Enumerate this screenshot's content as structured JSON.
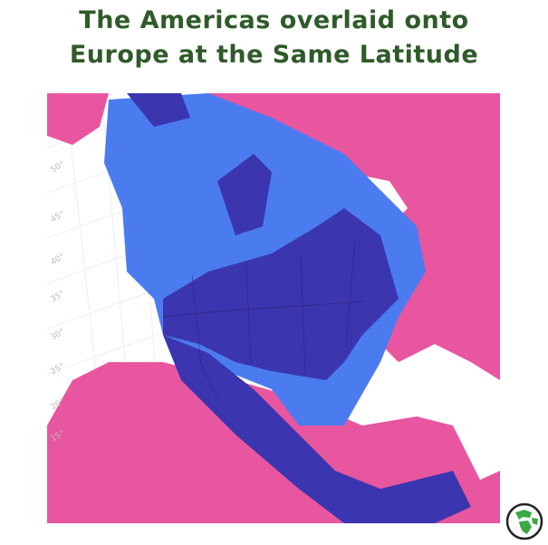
{
  "title": {
    "line1": "The Americas overlaid onto",
    "line2": "Europe at the Same Latitude"
  },
  "map": {
    "latitude_labels": [
      "50°",
      "45°",
      "40°",
      "35°",
      "30°",
      "25°",
      "20°",
      "15°"
    ],
    "colors": {
      "europe_africa_asia": "#e8569f",
      "americas": "#4a7cf0",
      "overlap": "#3b35b0",
      "background": "#ffffff"
    }
  },
  "logo": {
    "icon": "globe-icon",
    "color": "#3aa845"
  }
}
